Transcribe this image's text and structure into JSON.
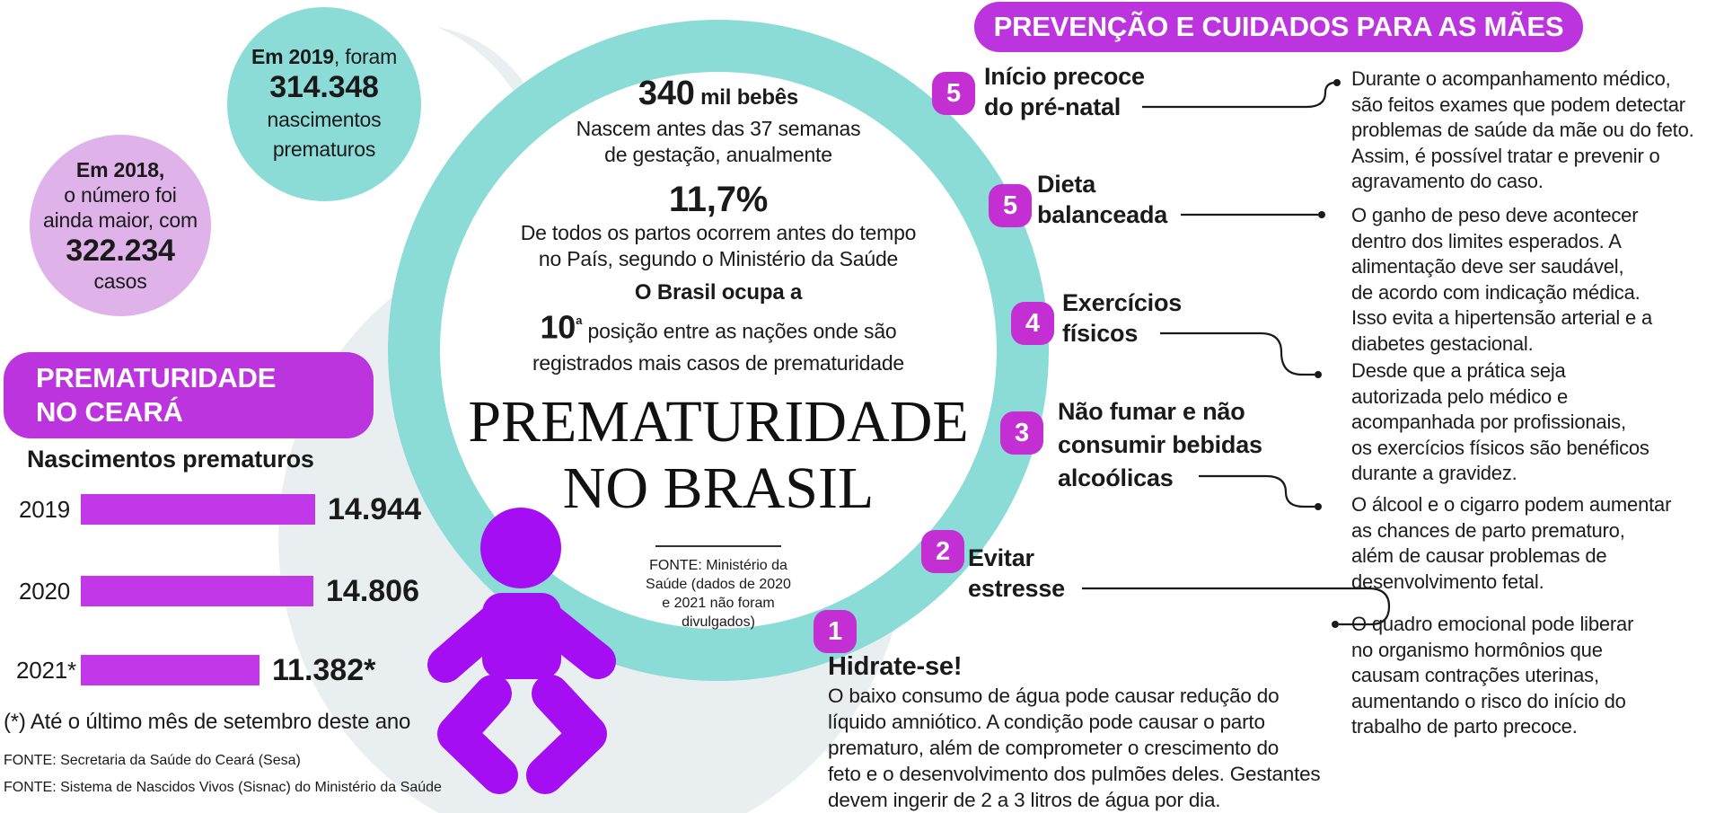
{
  "colors": {
    "magenta": "#bb34de",
    "bar": "#c238e8",
    "badge": "#c32fd3",
    "baby": "#a50df2",
    "teal": "#8bdbd6",
    "pale": "#e9eef1",
    "pink": "#dfb2ea",
    "ink": "#1a1a1a"
  },
  "top_left": {
    "teal_circle": {
      "intro_bold": "Em 2019",
      "intro_rest": ", foram",
      "value": "314.348",
      "lines": [
        "nascimentos",
        "prematuros"
      ]
    },
    "pink_circle": {
      "line1": "Em 2018,",
      "line2": "o número foi",
      "line3": "ainda maior, com",
      "value": "322.234",
      "line4": "casos"
    }
  },
  "ceara": {
    "banner_lines": [
      "PREMATURIDADE",
      "NO CEARÁ"
    ],
    "chart_title": "Nascimentos prematuros",
    "footnote": "(*) Até o último mês de setembro deste ano",
    "sources": [
      "FONTE: Secretaria da Saúde do Ceará (Sesa)",
      "FONTE: Sistema de Nascidos Vivos (Sisnac) do Ministério da Saúde"
    ]
  },
  "chart_data": {
    "type": "bar",
    "orientation": "horizontal",
    "title": "Nascimentos prematuros",
    "categories": [
      "2019",
      "2020",
      "2021*"
    ],
    "values": [
      14944,
      14806,
      11382
    ],
    "value_labels": [
      "14.944",
      "14.806",
      "11.382*"
    ],
    "note": "(*) Até o último mês de setembro deste ano",
    "bar_color": "#c238e8",
    "xlim": [
      0,
      15000
    ]
  },
  "center": {
    "stat1_value": "340",
    "stat1_unit": "mil bebês",
    "stat1_desc": [
      "Nascem antes das 37 semanas",
      "de gestação, anualmente"
    ],
    "stat2_value": "11,7%",
    "stat2_desc": [
      "De todos os partos ocorrem antes do tempo",
      "no País, segundo o Ministério da Saúde"
    ],
    "stat3_intro": "O Brasil ocupa a",
    "stat3_value": "10",
    "stat3_sup": "ª",
    "stat3_rest": "posição entre as nações onde são",
    "stat3_desc": "registrados mais casos de prematuridade",
    "title_lines": [
      "PREMATURIDADE",
      "NO BRASIL"
    ],
    "source_lines": [
      "FONTE: Ministério da",
      "Saúde (dados de 2020",
      "e 2021 não foram",
      "divulgados)"
    ]
  },
  "prevention": {
    "banner": "PREVENÇÃO E CUIDADOS PARA AS MÃES",
    "items": [
      {
        "number": "5",
        "label": [
          "Início precoce",
          "do pré-natal"
        ]
      },
      {
        "number": "5",
        "label": [
          "Dieta",
          "balanceada"
        ]
      },
      {
        "number": "4",
        "label": [
          "Exercícios",
          "físicos"
        ]
      },
      {
        "number": "3",
        "label": [
          "Não fumar e não",
          "consumir bebidas",
          "alcoólicas"
        ]
      },
      {
        "number": "2",
        "label": [
          "Evitar",
          "estresse"
        ]
      },
      {
        "number": "1",
        "label": []
      }
    ],
    "hydrate_title": "Hidrate-se!",
    "hydrate_body": [
      "O baixo consumo de água pode causar redução do",
      "líquido amniótico. A condição pode causar o parto",
      "prematuro, além de comprometer o crescimento do",
      "feto e o desenvolvimento dos pulmões deles. Gestantes",
      "devem ingerir de 2 a 3 litros de água por dia."
    ],
    "descriptions": [
      [
        "Durante o acompanhamento médico,",
        "são feitos exames que podem detectar",
        "problemas de saúde da mãe ou do feto.",
        "Assim, é possível tratar e prevenir o",
        "agravamento do caso."
      ],
      [
        "O ganho de peso deve acontecer",
        "dentro dos limites esperados. A",
        "alimentação deve ser saudável,",
        "de acordo com indicação médica.",
        "Isso evita a hipertensão arterial e a",
        "diabetes gestacional."
      ],
      [
        "Desde que a prática seja",
        "autorizada pelo médico e",
        "acompanhada por profissionais,",
        "os exercícios físicos são benéficos",
        "durante a gravidez."
      ],
      [
        "O álcool e o cigarro podem aumentar",
        "as chances de parto prematuro,",
        "além de causar problemas de",
        "desenvolvimento fetal."
      ],
      [
        "O quadro emocional pode liberar",
        "no organismo hormônios que",
        "causam contrações uterinas,",
        "aumentando o risco do início do",
        "trabalho de parto precoce."
      ]
    ]
  }
}
